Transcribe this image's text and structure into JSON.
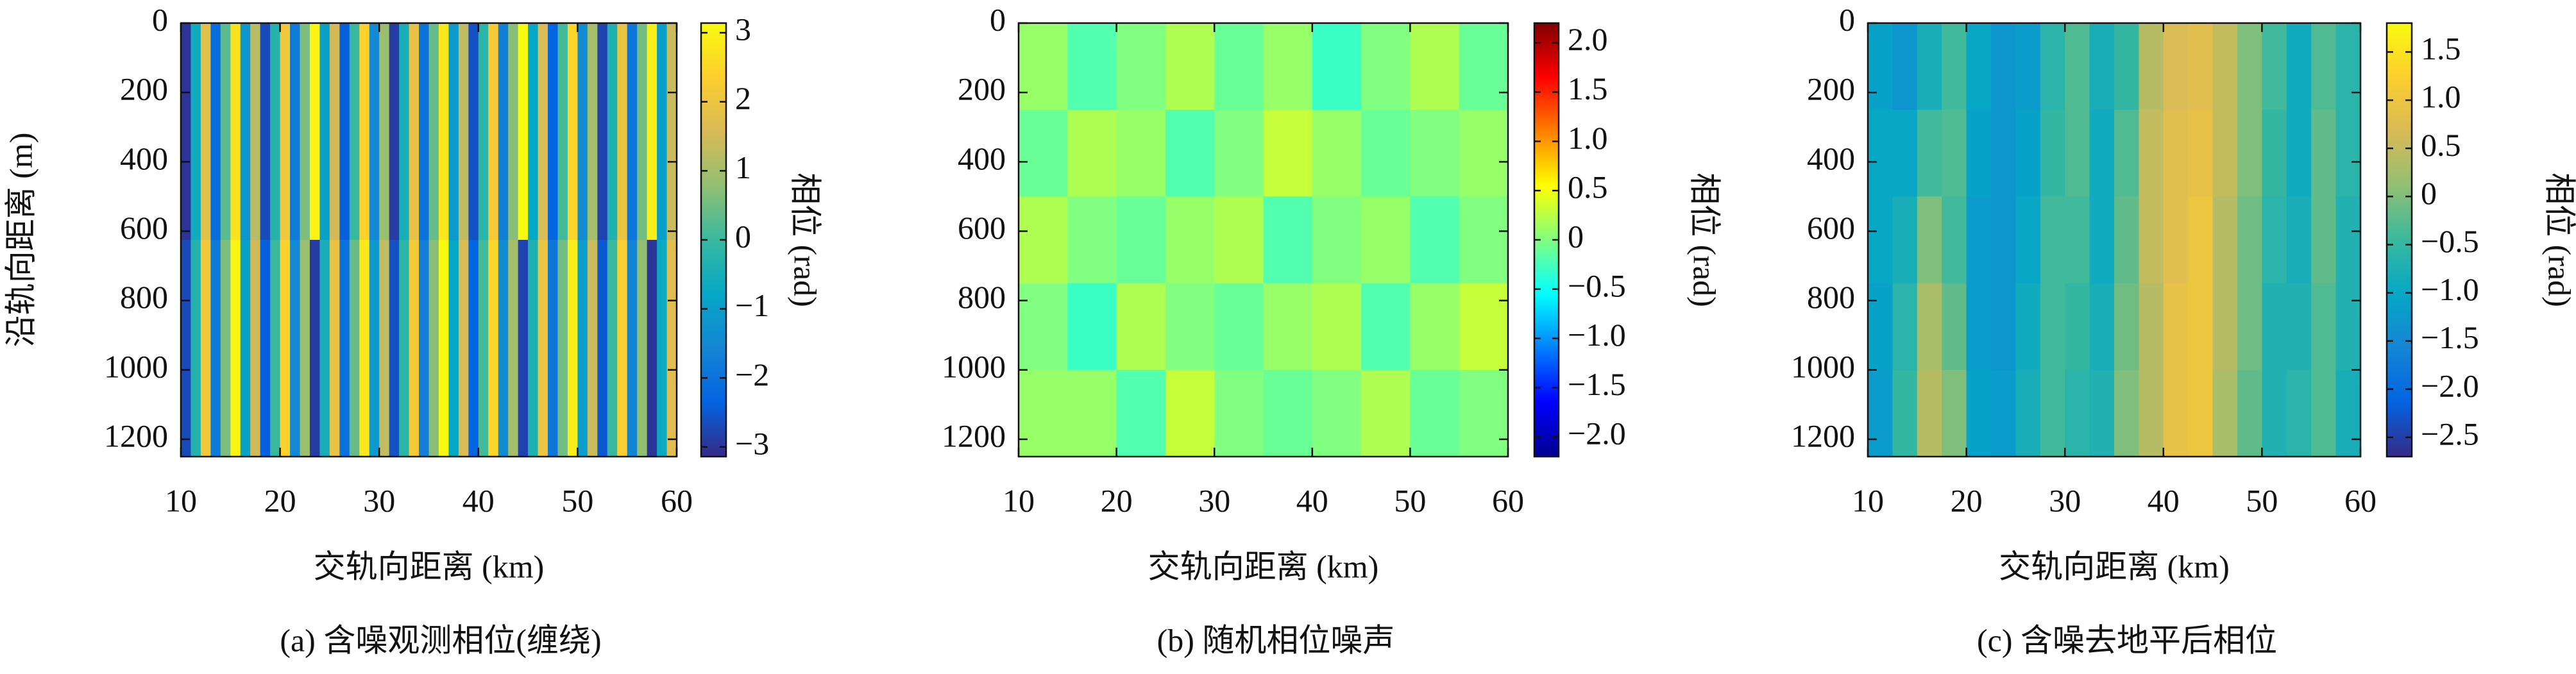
{
  "chart_data": [
    {
      "type": "heatmap",
      "caption": "(a) 含噪观测相位(缠绕)",
      "xlabel": "交轨向距离 (km)",
      "ylabel": "沿轨向距离 (m)",
      "colorbar_label": "相位 (rad)",
      "colormap": "parula",
      "xlim": [
        10,
        60
      ],
      "xticks": [
        10,
        20,
        30,
        40,
        50,
        60
      ],
      "ylim": [
        0,
        1250
      ],
      "yticks": [
        0,
        200,
        400,
        600,
        800,
        1000,
        1200
      ],
      "y_inverted": true,
      "zlim": [
        -3.14,
        3.14
      ],
      "zticks": [
        {
          "value": -3,
          "label": "−3"
        },
        {
          "value": -2,
          "label": "−2"
        },
        {
          "value": -1,
          "label": "−1"
        },
        0,
        1,
        2,
        3
      ],
      "xbins": [
        10,
        11,
        12,
        13,
        14,
        15,
        16,
        17,
        18,
        19,
        20,
        21,
        22,
        23,
        24,
        25,
        26,
        27,
        28,
        29,
        30,
        31,
        32,
        33,
        34,
        35,
        36,
        37,
        38,
        39,
        40,
        41,
        42,
        43,
        44,
        45,
        46,
        47,
        48,
        49,
        50,
        51,
        52,
        53,
        54,
        55,
        56,
        57,
        58,
        59,
        60
      ],
      "ybins": [
        0,
        625,
        1250
      ],
      "z": [
        [
          -3.0,
          -0.6,
          1.8,
          -2.1,
          0.3,
          2.7,
          -1.2,
          1.2,
          -2.7,
          -0.3,
          2.1,
          -1.8,
          0.6,
          3.0,
          -0.9,
          1.5,
          -2.4,
          0.0,
          2.4,
          -1.5,
          0.9,
          -2.9,
          -0.5,
          1.9,
          -2.0,
          0.4,
          2.8,
          -1.1,
          1.3,
          -2.6,
          -0.2,
          2.2,
          -1.7,
          0.7,
          3.1,
          -0.8,
          1.6,
          -2.3,
          0.1,
          2.5,
          -1.4,
          1.0,
          -2.8,
          -0.4,
          2.0,
          -1.9,
          0.5,
          2.9,
          -1.0,
          1.4
        ],
        [
          -2.7,
          -0.3,
          2.1,
          -1.8,
          0.6,
          3.0,
          -0.9,
          1.5,
          -2.4,
          0.0,
          2.4,
          -1.5,
          0.9,
          -2.9,
          -0.5,
          1.9,
          -2.0,
          0.4,
          2.8,
          -1.1,
          1.3,
          -2.6,
          -0.2,
          2.2,
          -1.7,
          0.7,
          3.1,
          -0.8,
          1.6,
          -2.3,
          0.1,
          2.5,
          -1.4,
          1.0,
          -2.8,
          -0.4,
          2.0,
          -1.9,
          0.5,
          2.9,
          -1.0,
          1.4,
          -2.5,
          0.0,
          2.3,
          -1.6,
          0.8,
          -3.0,
          -0.7,
          1.7
        ]
      ]
    },
    {
      "type": "heatmap",
      "caption": "(b) 随机相位噪声",
      "xlabel": "交轨向距离 (km)",
      "colorbar_label": "相位 (rad)",
      "colormap": "jet",
      "xlim": [
        10,
        60
      ],
      "xticks": [
        10,
        20,
        30,
        40,
        50,
        60
      ],
      "ylim": [
        0,
        1250
      ],
      "yticks": [
        0,
        200,
        400,
        600,
        800,
        1000,
        1200
      ],
      "y_inverted": true,
      "zlim": [
        -2.2,
        2.2
      ],
      "zticks": [
        {
          "value": -2,
          "label": "−2.0"
        },
        {
          "value": -1.5,
          "label": "−1.5"
        },
        {
          "value": -1,
          "label": "−1.0"
        },
        {
          "value": -0.5,
          "label": "−0.5"
        },
        0,
        0.5,
        {
          "value": 1,
          "label": "1.0"
        },
        1.5,
        {
          "value": 2,
          "label": "2.0"
        }
      ],
      "xbins": [
        10,
        15,
        20,
        25,
        30,
        35,
        40,
        45,
        50,
        55,
        60
      ],
      "ybins": [
        0,
        250,
        500,
        750,
        1000,
        1250
      ],
      "z": [
        [
          0.1,
          -0.2,
          0.0,
          0.2,
          -0.1,
          0.1,
          -0.3,
          0.0,
          0.2,
          -0.1
        ],
        [
          -0.1,
          0.2,
          0.1,
          -0.2,
          0.0,
          0.3,
          0.1,
          -0.1,
          0.0,
          0.1
        ],
        [
          0.2,
          0.0,
          -0.1,
          0.1,
          0.2,
          -0.2,
          0.0,
          0.1,
          -0.2,
          0.0
        ],
        [
          0.0,
          -0.3,
          0.2,
          0.0,
          -0.1,
          0.1,
          0.2,
          -0.2,
          0.1,
          0.3
        ],
        [
          0.1,
          0.1,
          -0.2,
          0.3,
          0.0,
          -0.1,
          0.0,
          0.2,
          -0.1,
          0.0
        ]
      ]
    },
    {
      "type": "heatmap",
      "caption": "(c) 含噪去地平后相位",
      "xlabel": "交轨向距离 (km)",
      "colorbar_label": "相位 (rad)",
      "colormap": "parula",
      "xlim": [
        10,
        60
      ],
      "xticks": [
        10,
        20,
        30,
        40,
        50,
        60
      ],
      "ylim": [
        0,
        1250
      ],
      "yticks": [
        0,
        200,
        400,
        600,
        800,
        1000,
        1200
      ],
      "y_inverted": true,
      "zlim": [
        -2.7,
        1.8
      ],
      "zticks": [
        {
          "value": -2.5,
          "label": "−2.5"
        },
        {
          "value": -2,
          "label": "−2.0"
        },
        {
          "value": -1.5,
          "label": "−1.5"
        },
        {
          "value": -1,
          "label": "−1.0"
        },
        {
          "value": -0.5,
          "label": "−0.5"
        },
        0,
        0.5,
        {
          "value": 1,
          "label": "1.0"
        },
        1.5
      ],
      "xbins": [
        10,
        12.5,
        15,
        17.5,
        20,
        22.5,
        25,
        27.5,
        30,
        32.5,
        35,
        37.5,
        40,
        42.5,
        45,
        47.5,
        50,
        52.5,
        55,
        57.5,
        60
      ],
      "ybins": [
        0,
        250,
        500,
        750,
        1000,
        1250
      ],
      "z": [
        [
          -1.1,
          -1.3,
          -0.8,
          -0.4,
          -1.0,
          -1.3,
          -1.2,
          -0.6,
          -0.3,
          -0.8,
          -0.5,
          0.4,
          0.7,
          0.8,
          0.5,
          0.0,
          -0.4,
          -0.9,
          -0.3,
          -0.6
        ],
        [
          -1.0,
          -1.0,
          -0.4,
          -0.3,
          -1.1,
          -1.3,
          -1.1,
          -0.5,
          -0.3,
          -0.9,
          -0.3,
          0.5,
          0.8,
          0.9,
          0.5,
          0.0,
          -0.5,
          -0.9,
          -0.2,
          -0.6
        ],
        [
          -1.0,
          -0.8,
          0.0,
          -0.4,
          -1.2,
          -1.3,
          -1.0,
          -0.4,
          -0.4,
          -0.9,
          -0.2,
          0.5,
          0.8,
          1.0,
          0.4,
          -0.1,
          -0.6,
          -0.8,
          -0.2,
          -0.7
        ],
        [
          -1.1,
          -0.6,
          0.3,
          -0.2,
          -1.2,
          -1.3,
          -0.9,
          -0.4,
          -0.5,
          -0.8,
          -0.1,
          0.4,
          0.9,
          1.0,
          0.4,
          -0.1,
          -0.7,
          -0.7,
          -0.3,
          -0.7
        ],
        [
          -1.2,
          -0.5,
          0.4,
          0.0,
          -1.1,
          -1.2,
          -0.8,
          -0.4,
          -0.6,
          -0.7,
          0.0,
          0.4,
          0.9,
          1.0,
          0.3,
          -0.2,
          -0.7,
          -0.6,
          -0.3,
          -0.8
        ]
      ]
    }
  ]
}
